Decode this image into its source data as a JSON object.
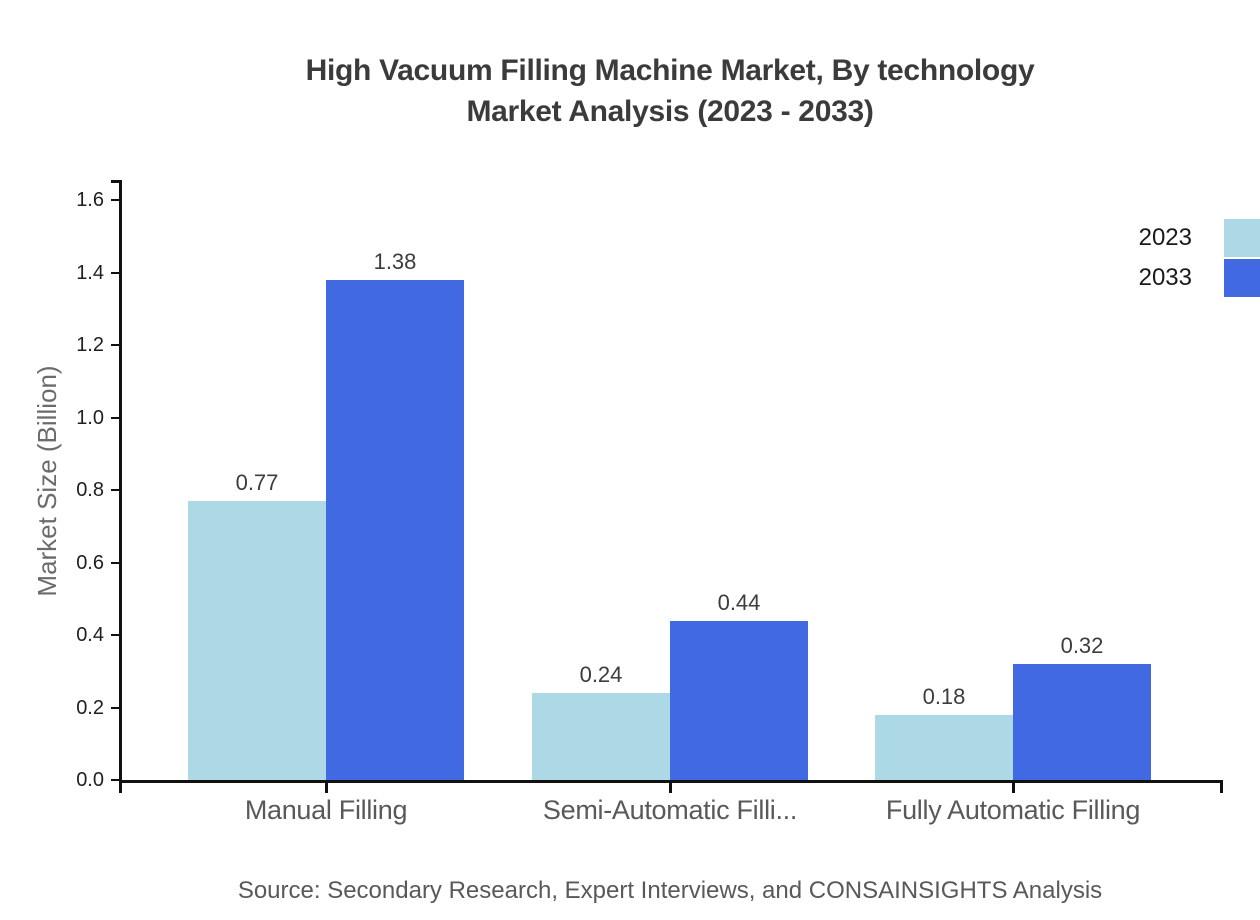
{
  "title": {
    "line1": "High Vacuum Filling Machine Market, By technology",
    "line2": "Market Analysis (2023 - 2033)"
  },
  "source": "Source: Secondary Research, Expert Interviews, and CONSAINSIGHTS Analysis",
  "y_axis": {
    "label": "Market Size (Billion)",
    "tick_labels": [
      "0.0",
      "0.2",
      "0.4",
      "0.6",
      "0.8",
      "1.0",
      "1.2",
      "1.4",
      "1.6"
    ]
  },
  "legend": {
    "items": [
      {
        "label": "2023",
        "color": "#add8e6"
      },
      {
        "label": "2033",
        "color": "#4169e1"
      }
    ],
    "position": "top-right"
  },
  "chart_data": {
    "type": "bar",
    "title": "High Vacuum Filling Machine Market, By technology Market Analysis (2023 - 2033)",
    "categories": [
      "Manual Filling",
      "Semi-Automatic Filli...",
      "Fully Automatic Filling"
    ],
    "series": [
      {
        "name": "2023",
        "color": "#add8e6",
        "values": [
          0.77,
          0.24,
          0.18
        ]
      },
      {
        "name": "2033",
        "color": "#4169e1",
        "values": [
          1.38,
          0.44,
          0.32
        ]
      }
    ],
    "xlabel": "",
    "ylabel": "Market Size (Billion)",
    "ylim": [
      0.0,
      1.65
    ],
    "ytick_step": 0.2,
    "grid": false,
    "value_labels": true,
    "legend_position": "top-right"
  }
}
